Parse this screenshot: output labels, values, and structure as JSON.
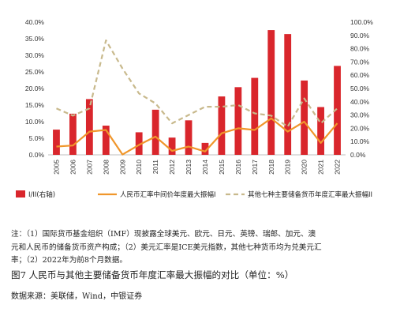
{
  "chart_data": {
    "type": "bar+line",
    "categories": [
      "2005",
      "2006",
      "2007",
      "2008",
      "2009",
      "2010",
      "2011",
      "2012",
      "2013",
      "2014",
      "2015",
      "2016",
      "2017",
      "2018",
      "2019",
      "2020",
      "2021",
      "2022"
    ],
    "left_axis": {
      "ylim": [
        0,
        40
      ],
      "ticks": [
        "0.0%",
        "5.0%",
        "10.0%",
        "15.0%",
        "20.0%",
        "25.0%",
        "30.0%",
        "35.0%",
        "40.0%"
      ]
    },
    "right_axis": {
      "ylim": [
        0,
        100
      ],
      "ticks": [
        "0.0%",
        "10.0%",
        "20.0%",
        "30.0%",
        "40.0%",
        "50.0%",
        "60.0%",
        "70.0%",
        "80.0%",
        "90.0%",
        "100.0%"
      ]
    },
    "series": [
      {
        "name": "I/II(右轴)",
        "kind": "bar",
        "axis": "right",
        "color": "#d9262c",
        "values": [
          19,
          31,
          42,
          22,
          0,
          17,
          34,
          13,
          26,
          9,
          44,
          51,
          58,
          94,
          91,
          56,
          36,
          67
        ]
      },
      {
        "name": "人民币汇率中间价年度最大振幅I",
        "kind": "line",
        "axis": "left",
        "color": "#f0962b",
        "values": [
          2.5,
          2.8,
          7.0,
          7.5,
          0.1,
          3.0,
          5.5,
          1.2,
          2.5,
          1.0,
          6.5,
          8.0,
          7.5,
          11.0,
          7.0,
          10.0,
          3.6,
          9.5
        ]
      },
      {
        "name": "其他七种主要储备货币年度汇率最大振幅II",
        "kind": "line",
        "dash": true,
        "axis": "left",
        "color": "#c8b98c",
        "values": [
          14.0,
          11.8,
          14.0,
          34.5,
          26.0,
          18.5,
          15.5,
          9.5,
          12.0,
          14.5,
          14.5,
          15.0,
          12.5,
          11.8,
          8.5,
          17.0,
          9.5,
          14.0
        ]
      }
    ]
  },
  "note_lines": [
    "注：（1）国际货币基金组织（IMF）现披露全球美元、欧元、日元、英镑、瑞郎、加元、澳",
    "元和人民币的储备货币资产构成；（2）美元汇率是ICE美元指数，其他七种货币均为兑美元汇",
    "率；（2）2022年为前8个月数据。"
  ],
  "caption": "图7   人民币与其他主要储备货币年度汇率最大振幅的对比（单位：%）",
  "source": "数据来源：美联储，Wind，中银证券"
}
